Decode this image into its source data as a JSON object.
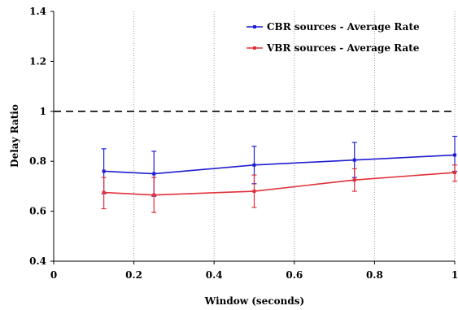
{
  "chart_data": {
    "type": "line",
    "xlabel": "Window (seconds)",
    "ylabel": "Delay Ratio",
    "xlim": [
      0,
      1
    ],
    "ylim": [
      0.4,
      1.4
    ],
    "x_ticks": [
      "0",
      "0.2",
      "0.4",
      "0.6",
      "0.8",
      "1"
    ],
    "y_ticks": [
      "0.4",
      "0.6",
      "0.8",
      "1",
      "1.2",
      "1.4"
    ],
    "grid": "dotted vertical gridlines",
    "legend_position": "top-right",
    "reference_line": {
      "y": 1.0,
      "style": "dashed",
      "color": "#000000"
    },
    "x": [
      0.125,
      0.25,
      0.5,
      0.75,
      1.0
    ],
    "series": [
      {
        "name": "CBR sources - Average Rate",
        "color": "#1f1fd0",
        "values": [
          0.76,
          0.75,
          0.785,
          0.805,
          0.825
        ],
        "err_low": [
          0.67,
          0.66,
          0.71,
          0.735,
          0.76
        ],
        "err_high": [
          0.85,
          0.84,
          0.86,
          0.875,
          0.9
        ]
      },
      {
        "name": "VBR sources - Average Rate",
        "color": "#e0303a",
        "values": [
          0.675,
          0.665,
          0.68,
          0.725,
          0.755
        ],
        "err_low": [
          0.61,
          0.595,
          0.615,
          0.68,
          0.72
        ],
        "err_high": [
          0.735,
          0.735,
          0.745,
          0.77,
          0.785
        ]
      }
    ]
  }
}
